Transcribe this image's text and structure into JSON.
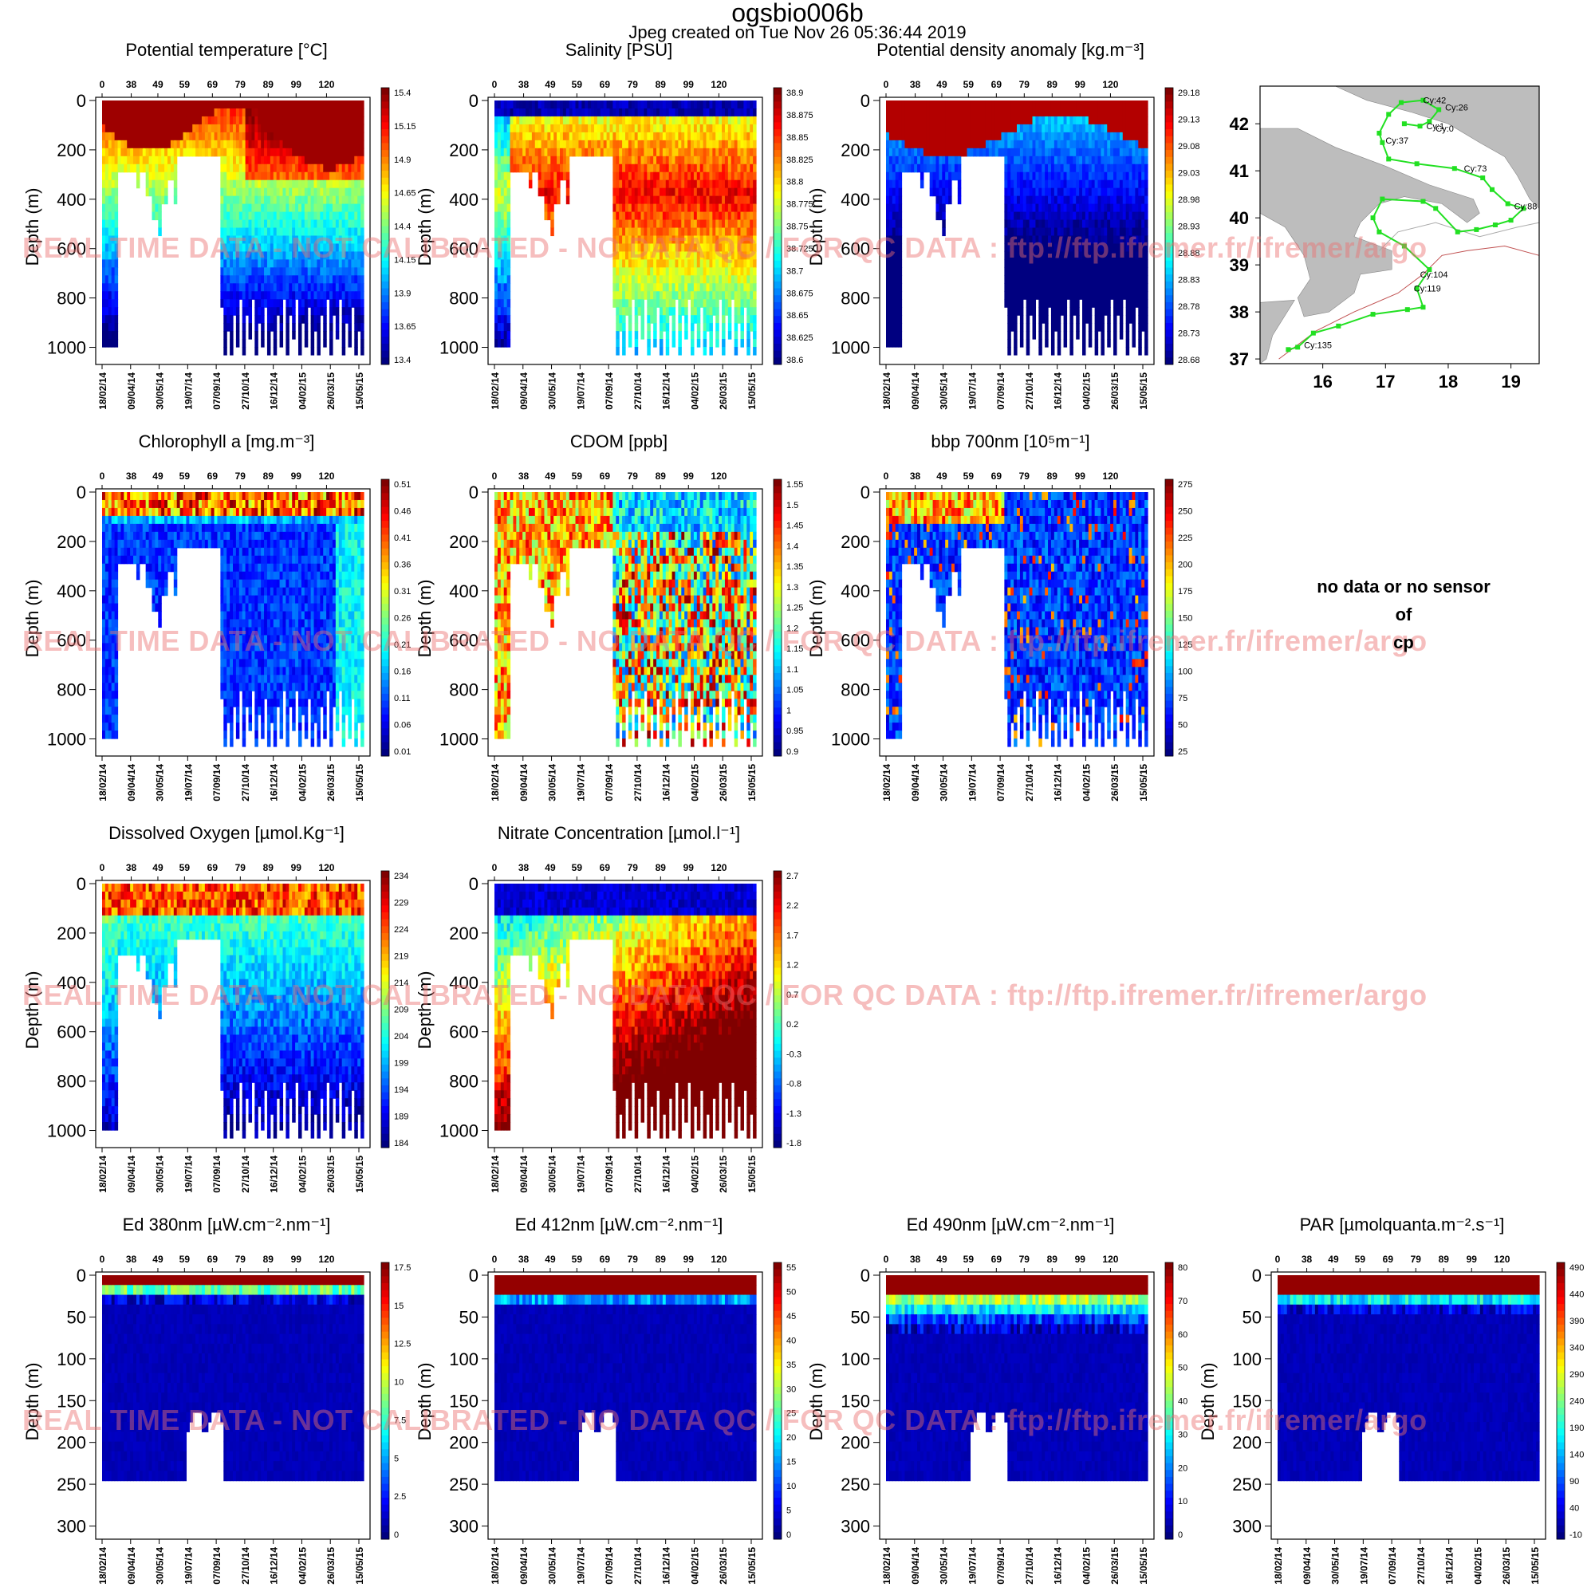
{
  "title": "ogsbio006b",
  "subtitle": "Jpeg created on  Tue Nov 26 05:36:44 2019",
  "watermark": "REAL TIME DATA - NOT CALIBRATED - NO DATA QC  /  FOR QC DATA : ftp://ftp.ifremer.fr/ifremer/argo",
  "no_data": {
    "line1": "no data or no sensor",
    "line2": "of",
    "line3": "cp"
  },
  "chart_data": [
    {
      "type": "heatmap",
      "id": "temp",
      "col": 0,
      "row": 0,
      "title": "Potential temperature [°C]",
      "ylabel": "Depth (m)",
      "ylim": [
        0,
        1050
      ],
      "yticks": [
        0,
        200,
        400,
        600,
        800,
        1000
      ],
      "top_ticks": [
        "0",
        "38",
        "49",
        "59",
        "69",
        "79",
        "89",
        "99",
        "120"
      ],
      "bottom_ticks": [
        "18/02/14",
        "09/04/14",
        "30/05/14",
        "19/07/14",
        "07/09/14",
        "27/10/14",
        "16/12/14",
        "04/02/15",
        "26/03/15",
        "15/05/15"
      ],
      "colorbar": [
        "15.4",
        "15.15",
        "14.9",
        "14.65",
        "14.4",
        "14.15",
        "13.9",
        "13.65",
        "13.4"
      ],
      "pattern": "ts"
    },
    {
      "type": "heatmap",
      "id": "sal",
      "col": 1,
      "row": 0,
      "title": "Salinity [PSU]",
      "ylabel": "Depth (m)",
      "ylim": [
        0,
        1050
      ],
      "yticks": [
        0,
        200,
        400,
        600,
        800,
        1000
      ],
      "top_ticks": [
        "0",
        "38",
        "49",
        "59",
        "69",
        "79",
        "89",
        "99",
        "120"
      ],
      "bottom_ticks": [
        "18/02/14",
        "09/04/14",
        "30/05/14",
        "19/07/14",
        "07/09/14",
        "27/10/14",
        "16/12/14",
        "04/02/15",
        "26/03/15",
        "15/05/15"
      ],
      "colorbar": [
        "38.9",
        "38.875",
        "38.85",
        "38.825",
        "38.8",
        "38.775",
        "38.75",
        "38.725",
        "38.7",
        "38.675",
        "38.65",
        "38.625",
        "38.6"
      ],
      "pattern": "sal"
    },
    {
      "type": "heatmap",
      "id": "dens",
      "col": 2,
      "row": 0,
      "title": "Potential density anomaly [kg.m⁻³]",
      "ylabel": "Depth (m)",
      "ylim": [
        0,
        1050
      ],
      "yticks": [
        0,
        200,
        400,
        600,
        800,
        1000
      ],
      "top_ticks": [
        "0",
        "38",
        "49",
        "59",
        "69",
        "79",
        "89",
        "99",
        "120"
      ],
      "bottom_ticks": [
        "18/02/14",
        "09/04/14",
        "30/05/14",
        "19/07/14",
        "07/09/14",
        "27/10/14",
        "16/12/14",
        "04/02/15",
        "26/03/15",
        "15/05/15"
      ],
      "colorbar": [
        "29.18",
        "29.13",
        "29.08",
        "29.03",
        "28.98",
        "28.93",
        "28.88",
        "28.83",
        "28.78",
        "28.73",
        "28.68"
      ],
      "pattern": "dens"
    },
    {
      "type": "heatmap",
      "id": "chl",
      "col": 0,
      "row": 1,
      "title": "Chlorophyll a [mg.m⁻³]",
      "ylabel": "Depth (m)",
      "ylim": [
        0,
        1050
      ],
      "yticks": [
        0,
        200,
        400,
        600,
        800,
        1000
      ],
      "top_ticks": [
        "0",
        "38",
        "49",
        "59",
        "69",
        "79",
        "89",
        "99",
        "120"
      ],
      "bottom_ticks": [
        "18/02/14",
        "09/04/14",
        "30/05/14",
        "19/07/14",
        "07/09/14",
        "27/10/14",
        "16/12/14",
        "04/02/15",
        "26/03/15",
        "15/05/15"
      ],
      "colorbar": [
        "0.51",
        "0.46",
        "0.41",
        "0.36",
        "0.31",
        "0.26",
        "0.21",
        "0.16",
        "0.11",
        "0.06",
        "0.01"
      ],
      "pattern": "chl"
    },
    {
      "type": "heatmap",
      "id": "cdom",
      "col": 1,
      "row": 1,
      "title": "CDOM  [ppb]",
      "ylabel": "Depth (m)",
      "ylim": [
        0,
        1050
      ],
      "yticks": [
        0,
        200,
        400,
        600,
        800,
        1000
      ],
      "top_ticks": [
        "0",
        "38",
        "49",
        "59",
        "69",
        "79",
        "89",
        "99",
        "120"
      ],
      "bottom_ticks": [
        "18/02/14",
        "09/04/14",
        "30/05/14",
        "19/07/14",
        "07/09/14",
        "27/10/14",
        "16/12/14",
        "04/02/15",
        "26/03/15",
        "15/05/15"
      ],
      "colorbar": [
        "1.55",
        "1.5",
        "1.45",
        "1.4",
        "1.35",
        "1.3",
        "1.25",
        "1.2",
        "1.15",
        "1.1",
        "1.05",
        "1",
        "0.95",
        "0.9"
      ],
      "pattern": "cdom"
    },
    {
      "type": "heatmap",
      "id": "bbp",
      "col": 2,
      "row": 1,
      "title": "bbp 700nm [10⁵m⁻¹]",
      "ylabel": "Depth (m)",
      "ylim": [
        0,
        1050
      ],
      "yticks": [
        0,
        200,
        400,
        600,
        800,
        1000
      ],
      "top_ticks": [
        "0",
        "38",
        "49",
        "59",
        "69",
        "79",
        "89",
        "99",
        "120"
      ],
      "bottom_ticks": [
        "18/02/14",
        "09/04/14",
        "30/05/14",
        "19/07/14",
        "07/09/14",
        "27/10/14",
        "16/12/14",
        "04/02/15",
        "26/03/15",
        "15/05/15"
      ],
      "colorbar": [
        "275",
        "250",
        "225",
        "200",
        "175",
        "150",
        "125",
        "100",
        "75",
        "50",
        "25"
      ],
      "pattern": "bbp"
    },
    {
      "type": "heatmap",
      "id": "oxy",
      "col": 0,
      "row": 2,
      "title": "Dissolved Oxygen [µmol.Kg⁻¹]",
      "ylabel": "Depth (m)",
      "ylim": [
        0,
        1050
      ],
      "yticks": [
        0,
        200,
        400,
        600,
        800,
        1000
      ],
      "top_ticks": [
        "0",
        "38",
        "49",
        "59",
        "69",
        "79",
        "89",
        "99",
        "120"
      ],
      "bottom_ticks": [
        "18/02/14",
        "09/04/14",
        "30/05/14",
        "19/07/14",
        "07/09/14",
        "27/10/14",
        "16/12/14",
        "04/02/15",
        "26/03/15",
        "15/05/15"
      ],
      "colorbar": [
        "234",
        "229",
        "224",
        "219",
        "214",
        "209",
        "204",
        "199",
        "194",
        "189",
        "184"
      ],
      "pattern": "oxy"
    },
    {
      "type": "heatmap",
      "id": "nitr",
      "col": 1,
      "row": 2,
      "title": "Nitrate Concentration [µmol.l⁻¹]",
      "ylabel": "Depth (m)",
      "ylim": [
        0,
        1050
      ],
      "yticks": [
        0,
        200,
        400,
        600,
        800,
        1000
      ],
      "top_ticks": [
        "0",
        "38",
        "49",
        "59",
        "69",
        "79",
        "89",
        "99",
        "120"
      ],
      "bottom_ticks": [
        "18/02/14",
        "09/04/14",
        "30/05/14",
        "19/07/14",
        "07/09/14",
        "27/10/14",
        "16/12/14",
        "04/02/15",
        "26/03/15",
        "15/05/15"
      ],
      "colorbar": [
        "2.7",
        "2.2",
        "1.7",
        "1.2",
        "0.7",
        "0.2",
        "-0.3",
        "-0.8",
        "-1.3",
        "-1.8"
      ],
      "pattern": "nitr"
    },
    {
      "type": "heatmap",
      "id": "ed380",
      "col": 0,
      "row": 3,
      "title": "Ed 380nm [µW.cm⁻².nm⁻¹]",
      "ylabel": "Depth (m)",
      "ylim": [
        0,
        310
      ],
      "yticks": [
        0,
        50,
        100,
        150,
        200,
        250,
        300
      ],
      "top_ticks": [
        "0",
        "38",
        "49",
        "59",
        "69",
        "79",
        "89",
        "99",
        "120"
      ],
      "bottom_ticks": [
        "18/02/14",
        "09/04/14",
        "30/05/14",
        "19/07/14",
        "07/09/14",
        "27/10/14",
        "16/12/14",
        "04/02/15",
        "26/03/15",
        "15/05/15"
      ],
      "colorbar": [
        "17.5",
        "15",
        "12.5",
        "10",
        "7.5",
        "5",
        "2.5",
        "0"
      ],
      "pattern": "light",
      "light_depth": 25
    },
    {
      "type": "heatmap",
      "id": "ed412",
      "col": 1,
      "row": 3,
      "title": "Ed 412nm [µW.cm⁻².nm⁻¹]",
      "ylabel": "Depth (m)",
      "ylim": [
        0,
        310
      ],
      "yticks": [
        0,
        50,
        100,
        150,
        200,
        250,
        300
      ],
      "top_ticks": [
        "0",
        "38",
        "49",
        "59",
        "69",
        "79",
        "89",
        "99",
        "120"
      ],
      "bottom_ticks": [
        "18/02/14",
        "09/04/14",
        "30/05/14",
        "19/07/14",
        "07/09/14",
        "27/10/14",
        "16/12/14",
        "04/02/15",
        "26/03/15",
        "15/05/15"
      ],
      "colorbar": [
        "55",
        "50",
        "45",
        "40",
        "35",
        "30",
        "25",
        "20",
        "15",
        "10",
        "5",
        "0"
      ],
      "pattern": "light",
      "light_depth": 35
    },
    {
      "type": "heatmap",
      "id": "ed490",
      "col": 2,
      "row": 3,
      "title": "Ed 490nm [µW.cm⁻².nm⁻¹]",
      "ylabel": "Depth (m)",
      "ylim": [
        0,
        310
      ],
      "yticks": [
        0,
        50,
        100,
        150,
        200,
        250,
        300
      ],
      "top_ticks": [
        "0",
        "38",
        "49",
        "59",
        "69",
        "79",
        "89",
        "99",
        "120"
      ],
      "bottom_ticks": [
        "18/02/14",
        "09/04/14",
        "30/05/14",
        "19/07/14",
        "07/09/14",
        "27/10/14",
        "16/12/14",
        "04/02/15",
        "26/03/15",
        "15/05/15"
      ],
      "colorbar": [
        "80",
        "70",
        "60",
        "50",
        "40",
        "30",
        "20",
        "10",
        "0"
      ],
      "pattern": "light",
      "light_depth": 60
    },
    {
      "type": "heatmap",
      "id": "par",
      "col": 3,
      "row": 3,
      "title": "PAR [µmolquanta.m⁻².s⁻¹]",
      "ylabel": "Depth (m)",
      "ylim": [
        0,
        310
      ],
      "yticks": [
        0,
        50,
        100,
        150,
        200,
        250,
        300
      ],
      "top_ticks": [
        "0",
        "38",
        "49",
        "59",
        "69",
        "79",
        "89",
        "99",
        "120"
      ],
      "bottom_ticks": [
        "18/02/14",
        "09/04/14",
        "30/05/14",
        "19/07/14",
        "07/09/14",
        "27/10/14",
        "16/12/14",
        "04/02/15",
        "26/03/15",
        "15/05/15"
      ],
      "colorbar": [
        "490",
        "440",
        "390",
        "340",
        "290",
        "240",
        "190",
        "140",
        "90",
        "40",
        "-10"
      ],
      "pattern": "light",
      "light_depth": 40
    }
  ],
  "map": {
    "xticks": [
      "16",
      "17",
      "18",
      "19"
    ],
    "xrange": [
      15.0,
      19.45
    ],
    "yticks": [
      "37",
      "38",
      "39",
      "40",
      "41",
      "42"
    ],
    "yrange": [
      36.9,
      42.8
    ],
    "colors": {
      "land": "#bdbdbd",
      "track": "#22e022"
    },
    "track": [
      [
        15.45,
        37.2
      ],
      [
        15.6,
        37.25
      ],
      [
        15.85,
        37.55
      ],
      [
        16.25,
        37.7
      ],
      [
        16.8,
        37.95
      ],
      [
        17.35,
        38.05
      ],
      [
        17.6,
        38.1
      ],
      [
        17.5,
        38.5
      ],
      [
        17.7,
        38.9
      ],
      [
        17.3,
        39.4
      ],
      [
        16.9,
        39.7
      ],
      [
        16.8,
        40.0
      ],
      [
        16.95,
        40.4
      ],
      [
        17.6,
        40.35
      ],
      [
        17.8,
        40.2
      ],
      [
        18.15,
        39.7
      ],
      [
        18.45,
        39.75
      ],
      [
        18.75,
        39.85
      ],
      [
        19.0,
        39.95
      ],
      [
        19.2,
        40.2
      ],
      [
        18.95,
        40.3
      ],
      [
        18.7,
        40.6
      ],
      [
        18.55,
        40.85
      ],
      [
        18.1,
        41.05
      ],
      [
        17.5,
        41.15
      ],
      [
        17.05,
        41.25
      ],
      [
        16.95,
        41.6
      ],
      [
        16.9,
        41.8
      ],
      [
        17.05,
        42.2
      ],
      [
        17.25,
        42.45
      ],
      [
        17.6,
        42.5
      ],
      [
        17.85,
        42.3
      ],
      [
        17.7,
        42.05
      ],
      [
        17.55,
        41.95
      ],
      [
        17.3,
        42.0
      ]
    ],
    "labels": [
      {
        "text": "Cy:42",
        "lon": 17.55,
        "lat": 42.5
      },
      {
        "text": "Cy:26",
        "lon": 17.9,
        "lat": 42.35
      },
      {
        "text": "Cy:37",
        "lon": 16.95,
        "lat": 41.65
      },
      {
        "text": "Cy:1",
        "lon": 17.6,
        "lat": 41.95
      },
      {
        "text": "Cy:0",
        "lon": 17.75,
        "lat": 41.9
      },
      {
        "text": "Cy:73",
        "lon": 18.2,
        "lat": 41.05
      },
      {
        "text": "Cy:88",
        "lon": 19.0,
        "lat": 40.25
      },
      {
        "text": "Cy:104",
        "lon": 17.5,
        "lat": 38.8
      },
      {
        "text": "Cy:119",
        "lon": 17.4,
        "lat": 38.5
      },
      {
        "text": "Cy:135",
        "lon": 15.65,
        "lat": 37.3
      }
    ]
  }
}
